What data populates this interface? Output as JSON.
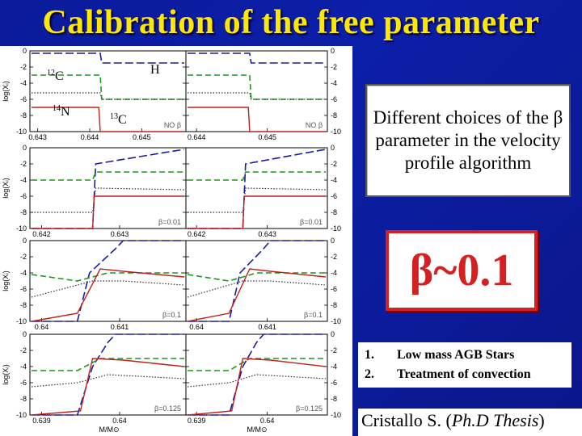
{
  "title": "Calibration of the free parameter",
  "description_box": "Different choices of the β parameter in the velocity profile algorithm",
  "beta_box": "β~0.1",
  "list": [
    {
      "num": "1.",
      "text": "Low mass AGB Stars"
    },
    {
      "num": "2.",
      "text": "Treatment of convection"
    }
  ],
  "credit": {
    "prefix": "Cristallo S. (",
    "italic": "Ph.D Thesis",
    "suffix": ")"
  },
  "figure": {
    "ylabel": "log(Xᵢ)",
    "xlabel": "M/M⊙",
    "isotopes": {
      "c12": "12C",
      "n14": "14N",
      "c13": "13C",
      "h": "H"
    },
    "rows": [
      {
        "note_left": "NO β",
        "note_right": "NO β",
        "xticks_left": [
          "0.643",
          "0.644",
          "0.645"
        ],
        "xticks_right": [
          "0.644",
          "0.645"
        ]
      },
      {
        "note_left": "β=0.01",
        "note_right": "β=0.01",
        "xticks_left": [
          "0.642",
          "0.643"
        ],
        "xticks_right": [
          "0.642",
          "0.643"
        ]
      },
      {
        "note_left": "β=0.1",
        "note_right": "β=0.1",
        "xticks_left": [
          "0.64",
          "0.641"
        ],
        "xticks_right": [
          "0.64",
          "0.641"
        ]
      },
      {
        "note_left": "β=0.125",
        "note_right": "β=0.125",
        "xticks_left": [
          "0.639",
          "0.64"
        ],
        "xticks_right": [
          "0.639",
          "0.64"
        ]
      }
    ],
    "yticks": [
      "0",
      "-2",
      "-4",
      "-6",
      "-8",
      "-10"
    ]
  }
}
